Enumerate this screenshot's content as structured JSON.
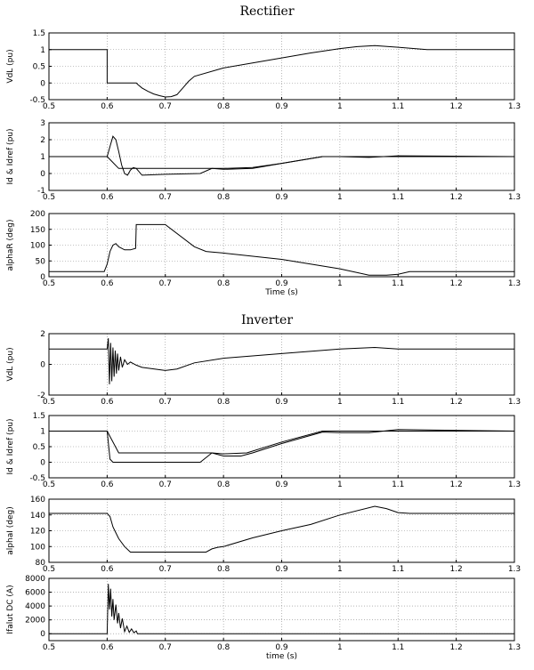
{
  "titles": {
    "rectifier": "Rectifier",
    "inverter": "Inverter"
  },
  "colors": {
    "line": "#000000",
    "grid": "#888888",
    "background": "#ffffff"
  },
  "chart_data": [
    {
      "type": "line",
      "ylabel": "VdL (pu)",
      "xlabel": "",
      "xlim": [
        0.5,
        1.3
      ],
      "ylim": [
        -0.5,
        1.5
      ],
      "xticks": [
        "0.5",
        "0.6",
        "0.7",
        "0.8",
        "0.9",
        "1",
        "1.1",
        "1.2",
        "1.3"
      ],
      "yticks": [
        "-0.5",
        "0",
        "0.5",
        "1",
        "1.5"
      ],
      "grid": true,
      "series": [
        {
          "x": [
            0.5,
            0.6,
            0.6,
            0.65,
            0.653,
            0.66,
            0.67,
            0.68,
            0.69,
            0.7,
            0.71,
            0.72,
            0.73,
            0.74,
            0.75,
            0.8,
            0.85,
            0.9,
            0.95,
            1.0,
            1.03,
            1.06,
            1.1,
            1.15,
            1.2,
            1.3
          ],
          "y": [
            1,
            1,
            0,
            0,
            -0.05,
            -0.15,
            -0.25,
            -0.33,
            -0.38,
            -0.42,
            -0.41,
            -0.35,
            -0.15,
            0.05,
            0.2,
            0.45,
            0.6,
            0.75,
            0.9,
            1.03,
            1.09,
            1.12,
            1.07,
            1.0,
            1.0,
            1.0
          ]
        }
      ]
    },
    {
      "type": "line",
      "ylabel": "Id & Idref (pu)",
      "xlabel": "",
      "xlim": [
        0.5,
        1.3
      ],
      "ylim": [
        -1,
        3
      ],
      "xticks": [
        "0.5",
        "0.6",
        "0.7",
        "0.8",
        "0.9",
        "1",
        "1.1",
        "1.2",
        "1.3"
      ],
      "yticks": [
        "-1",
        "0",
        "1",
        "2",
        "3"
      ],
      "grid": true,
      "series": [
        {
          "x": [
            0.5,
            0.6,
            0.605,
            0.61,
            0.615,
            0.62,
            0.625,
            0.63,
            0.635,
            0.64,
            0.645,
            0.65,
            0.66,
            0.7,
            0.76,
            0.78,
            0.8,
            0.85,
            0.9,
            0.97,
            1.0,
            1.05,
            1.1,
            1.3
          ],
          "y": [
            1,
            1,
            1.6,
            2.2,
            2.0,
            1.3,
            0.5,
            0.0,
            -0.1,
            0.2,
            0.35,
            0.3,
            -0.1,
            -0.05,
            0.0,
            0.3,
            0.25,
            0.3,
            0.6,
            1.0,
            1.0,
            0.95,
            1.05,
            1.0
          ]
        },
        {
          "x": [
            0.5,
            0.6,
            0.62,
            0.65,
            0.7,
            0.77,
            0.8,
            0.85,
            0.9,
            0.97,
            1.0,
            1.1,
            1.15,
            1.3
          ],
          "y": [
            1,
            1,
            0.3,
            0.3,
            0.3,
            0.3,
            0.3,
            0.35,
            0.6,
            1.0,
            1.0,
            1.0,
            1.0,
            1.0
          ]
        }
      ]
    },
    {
      "type": "line",
      "ylabel": "alphaR (deg)",
      "xlabel": "Time (s)",
      "xlim": [
        0.5,
        1.3
      ],
      "ylim": [
        0,
        200
      ],
      "xticks": [
        "0.5",
        "0.6",
        "0.7",
        "0.8",
        "0.9",
        "1",
        "1.1",
        "1.2",
        "1.3"
      ],
      "yticks": [
        "0",
        "50",
        "100",
        "150",
        "200"
      ],
      "grid": true,
      "series": [
        {
          "x": [
            0.5,
            0.595,
            0.6,
            0.605,
            0.61,
            0.615,
            0.62,
            0.63,
            0.64,
            0.649,
            0.65,
            0.66,
            0.7,
            0.75,
            0.77,
            0.78,
            0.8,
            0.9,
            1.0,
            1.05,
            1.08,
            1.1,
            1.12,
            1.3
          ],
          "y": [
            16,
            16,
            40,
            80,
            100,
            105,
            95,
            85,
            85,
            90,
            165,
            165,
            165,
            95,
            80,
            78,
            75,
            55,
            25,
            5,
            5,
            8,
            16,
            16
          ]
        }
      ]
    },
    {
      "type": "line",
      "ylabel": "VdL (pu)",
      "xlabel": "",
      "xlim": [
        0.5,
        1.3
      ],
      "ylim": [
        -2,
        2
      ],
      "xticks": [
        "0.5",
        "0.6",
        "0.7",
        "0.8",
        "0.9",
        "1",
        "1.1",
        "1.2",
        "1.3"
      ],
      "yticks": [
        "-2",
        "0",
        "2"
      ],
      "grid": true,
      "series": [
        {
          "x": [
            0.5,
            0.6,
            0.602,
            0.604,
            0.606,
            0.608,
            0.61,
            0.612,
            0.614,
            0.616,
            0.618,
            0.62,
            0.623,
            0.626,
            0.63,
            0.635,
            0.64,
            0.65,
            0.66,
            0.7,
            0.72,
            0.75,
            0.8,
            0.9,
            1.0,
            1.06,
            1.1,
            1.2,
            1.3
          ],
          "y": [
            1,
            1,
            1.7,
            -1.3,
            1.4,
            -1.1,
            1.1,
            -0.8,
            0.9,
            -0.6,
            0.7,
            -0.4,
            0.5,
            -0.2,
            0.3,
            0.0,
            0.15,
            -0.05,
            -0.2,
            -0.4,
            -0.3,
            0.1,
            0.4,
            0.7,
            1.0,
            1.1,
            1.0,
            1.0,
            1.0
          ]
        }
      ]
    },
    {
      "type": "line",
      "ylabel": "Id & Idref (pu)",
      "xlabel": "",
      "xlim": [
        0.5,
        1.3
      ],
      "ylim": [
        -0.5,
        1.5
      ],
      "xticks": [
        "0.5",
        "0.6",
        "0.7",
        "0.8",
        "0.9",
        "1",
        "1.1",
        "1.2",
        "1.3"
      ],
      "yticks": [
        "-0.5",
        "0",
        "0.5",
        "1",
        "1.5"
      ],
      "grid": true,
      "series": [
        {
          "x": [
            0.5,
            0.6,
            0.605,
            0.61,
            0.62,
            0.7,
            0.76,
            0.78,
            0.8,
            0.83,
            0.85,
            0.9,
            0.97,
            1.0,
            1.05,
            1.1,
            1.3
          ],
          "y": [
            1,
            1,
            0.1,
            0.0,
            0.0,
            0.0,
            0.0,
            0.3,
            0.2,
            0.2,
            0.3,
            0.6,
            0.97,
            0.95,
            0.95,
            1.05,
            1.0
          ]
        },
        {
          "x": [
            0.5,
            0.6,
            0.62,
            0.7,
            0.76,
            0.78,
            0.8,
            0.84,
            0.9,
            0.97,
            1.0,
            1.1,
            1.3
          ],
          "y": [
            1,
            1,
            0.3,
            0.3,
            0.3,
            0.3,
            0.27,
            0.3,
            0.65,
            1.0,
            1.0,
            1.0,
            1.0
          ]
        }
      ]
    },
    {
      "type": "line",
      "ylabel": "alphaI (deg)",
      "xlabel": "",
      "xlim": [
        0.5,
        1.3
      ],
      "ylim": [
        80,
        160
      ],
      "xticks": [
        "0.5",
        "0.6",
        "0.7",
        "0.8",
        "0.9",
        "1",
        "1.1",
        "1.2",
        "1.3"
      ],
      "yticks": [
        "80",
        "100",
        "120",
        "140",
        "160"
      ],
      "grid": true,
      "series": [
        {
          "x": [
            0.5,
            0.6,
            0.605,
            0.61,
            0.62,
            0.63,
            0.64,
            0.7,
            0.77,
            0.78,
            0.79,
            0.8,
            0.85,
            0.9,
            0.95,
            1.0,
            1.06,
            1.08,
            1.1,
            1.12,
            1.2,
            1.3
          ],
          "y": [
            142,
            142,
            138,
            125,
            110,
            100,
            93,
            93,
            93,
            97,
            99,
            100,
            111,
            120,
            128,
            140,
            151,
            148,
            143,
            142,
            142,
            142
          ]
        }
      ]
    },
    {
      "type": "line",
      "ylabel": "Ifalut DC (A)",
      "xlabel": "time (s)",
      "xlim": [
        0.5,
        1.3
      ],
      "ylim": [
        -1000,
        8000
      ],
      "xticks": [
        "0.5",
        "0.6",
        "0.7",
        "0.8",
        "0.9",
        "1",
        "1.1",
        "1.2",
        "1.3"
      ],
      "yticks": [
        "0",
        "2000",
        "4000",
        "6000",
        "8000"
      ],
      "grid": true,
      "series": [
        {
          "x": [
            0.5,
            0.6,
            0.602,
            0.604,
            0.606,
            0.608,
            0.61,
            0.612,
            0.615,
            0.618,
            0.62,
            0.623,
            0.626,
            0.63,
            0.634,
            0.638,
            0.642,
            0.646,
            0.65,
            0.652,
            1.3
          ],
          "y": [
            0,
            0,
            7200,
            3500,
            6500,
            2500,
            5000,
            2000,
            4200,
            1500,
            3000,
            800,
            2200,
            300,
            1100,
            200,
            700,
            150,
            400,
            0,
            0
          ]
        }
      ]
    }
  ]
}
